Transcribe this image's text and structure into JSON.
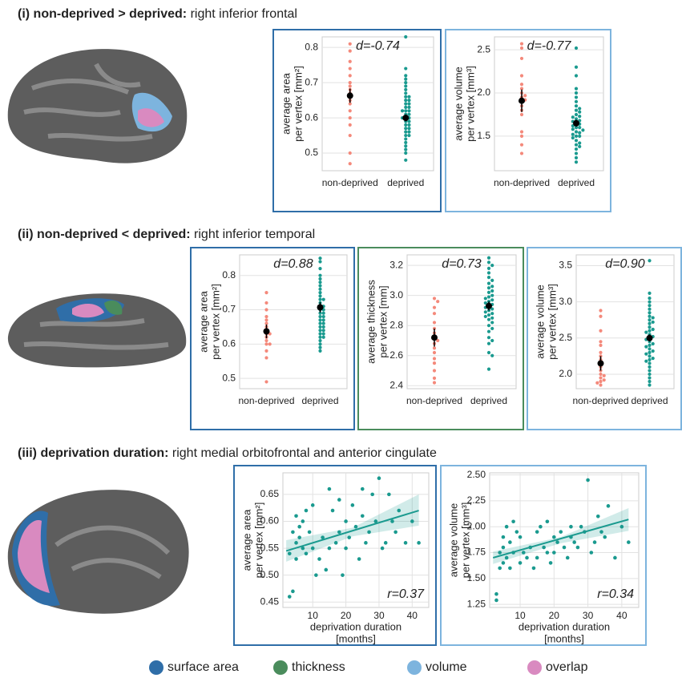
{
  "sections": [
    {
      "bold": "(i) non-deprived > deprived:",
      "text": "right inferior frontal"
    },
    {
      "bold": "(ii) non-deprived < deprived:",
      "text": "right inferior temporal"
    },
    {
      "bold": "(iii) deprivation duration:",
      "text": "right medial orbitofrontal and anterior cingulate"
    }
  ],
  "legend": [
    {
      "name": "surface area",
      "color": "#2f6ea8"
    },
    {
      "name": "thickness",
      "color": "#4a8c5c"
    },
    {
      "name": "volume",
      "color": "#7db4de"
    },
    {
      "name": "overlap",
      "color": "#d98ac0"
    }
  ],
  "chart_data": [
    {
      "type": "strip",
      "annotation": "d=-0.74",
      "frame_color": "#2f6ea8",
      "ylabel": [
        "average area",
        "per vertex [mm²]"
      ],
      "categories": [
        "non-deprived",
        "deprived"
      ],
      "ylim": [
        0.45,
        0.83
      ],
      "yticks": [
        0.5,
        0.6,
        0.7,
        0.8
      ],
      "groups": [
        {
          "color": "#f4897b",
          "mean": 0.663,
          "error": 0.02,
          "values": [
            0.81,
            0.79,
            0.76,
            0.74,
            0.72,
            0.7,
            0.69,
            0.68,
            0.67,
            0.66,
            0.65,
            0.64,
            0.62,
            0.6,
            0.58,
            0.55,
            0.5,
            0.47
          ]
        },
        {
          "color": "#1a9a8f",
          "mean": 0.6,
          "error": 0.01,
          "values": [
            0.83,
            0.74,
            0.72,
            0.71,
            0.7,
            0.69,
            0.68,
            0.67,
            0.66,
            0.66,
            0.65,
            0.65,
            0.64,
            0.64,
            0.63,
            0.63,
            0.62,
            0.62,
            0.62,
            0.61,
            0.61,
            0.6,
            0.6,
            0.6,
            0.59,
            0.59,
            0.58,
            0.58,
            0.57,
            0.57,
            0.56,
            0.56,
            0.55,
            0.55,
            0.54,
            0.53,
            0.52,
            0.51,
            0.5,
            0.48
          ]
        }
      ]
    },
    {
      "type": "strip",
      "annotation": "d=-0.77",
      "frame_color": "#7db4de",
      "ylabel": [
        "average volume",
        "per vertex [mm³]"
      ],
      "categories": [
        "non-deprived",
        "deprived"
      ],
      "ylim": [
        1.1,
        2.65
      ],
      "yticks": [
        {
          "value": 1.5,
          "label": "1.5"
        },
        {
          "value": 2,
          "label": "2.0"
        },
        {
          "value": 2.5,
          "label": "2.5"
        }
      ],
      "groups": [
        {
          "color": "#f4897b",
          "mean": 1.91,
          "error": 0.13,
          "values": [
            2.57,
            2.52,
            2.4,
            2.2,
            2.1,
            2.05,
            2,
            1.97,
            1.95,
            1.92,
            1.9,
            1.85,
            1.8,
            1.75,
            1.55,
            1.5,
            1.4,
            1.3
          ]
        },
        {
          "color": "#1a9a8f",
          "mean": 1.65,
          "error": 0.04,
          "values": [
            2.52,
            2.3,
            2.2,
            2.05,
            2,
            1.95,
            1.9,
            1.85,
            1.82,
            1.8,
            1.78,
            1.75,
            1.73,
            1.72,
            1.7,
            1.68,
            1.67,
            1.65,
            1.64,
            1.62,
            1.6,
            1.6,
            1.58,
            1.57,
            1.55,
            1.54,
            1.52,
            1.5,
            1.5,
            1.48,
            1.45,
            1.42,
            1.4,
            1.38,
            1.35,
            1.3,
            1.25,
            1.2
          ]
        }
      ]
    },
    {
      "type": "strip",
      "annotation": "d=0.88",
      "frame_color": "#2f6ea8",
      "ylabel": [
        "average area",
        "per vertex [mm²]"
      ],
      "categories": [
        "non-deprived",
        "deprived"
      ],
      "ylim": [
        0.47,
        0.86
      ],
      "yticks": [
        0.5,
        0.6,
        0.7,
        0.8
      ],
      "groups": [
        {
          "color": "#f4897b",
          "mean": 0.637,
          "error": 0.02,
          "values": [
            0.75,
            0.72,
            0.7,
            0.68,
            0.67,
            0.66,
            0.65,
            0.64,
            0.63,
            0.63,
            0.62,
            0.61,
            0.6,
            0.6,
            0.58,
            0.56,
            0.49
          ]
        },
        {
          "color": "#1a9a8f",
          "mean": 0.707,
          "error": 0.015,
          "values": [
            0.85,
            0.84,
            0.82,
            0.8,
            0.79,
            0.78,
            0.77,
            0.76,
            0.75,
            0.74,
            0.73,
            0.73,
            0.72,
            0.71,
            0.71,
            0.7,
            0.7,
            0.69,
            0.69,
            0.68,
            0.68,
            0.67,
            0.67,
            0.66,
            0.66,
            0.65,
            0.65,
            0.64,
            0.64,
            0.63,
            0.63,
            0.62,
            0.62,
            0.61,
            0.6,
            0.59,
            0.58
          ]
        }
      ]
    },
    {
      "type": "strip",
      "annotation": "d=0.73",
      "frame_color": "#4a8c5c",
      "ylabel": [
        "average thickness",
        "per vertex [mm]"
      ],
      "categories": [
        "non-deprived",
        "deprived"
      ],
      "ylim": [
        2.38,
        3.27
      ],
      "yticks": [
        2.4,
        2.6,
        2.8,
        {
          "value": 3,
          "label": "3.0"
        },
        3.2
      ],
      "groups": [
        {
          "color": "#f4897b",
          "mean": 2.72,
          "error": 0.06,
          "values": [
            2.98,
            2.96,
            2.92,
            2.88,
            2.82,
            2.78,
            2.75,
            2.72,
            2.7,
            2.68,
            2.65,
            2.62,
            2.58,
            2.55,
            2.5,
            2.45,
            2.42
          ]
        },
        {
          "color": "#1a9a8f",
          "mean": 2.93,
          "error": 0.03,
          "values": [
            3.25,
            3.22,
            3.2,
            3.18,
            3.15,
            3.12,
            3.1,
            3.08,
            3.06,
            3.05,
            3.03,
            3.02,
            3,
            2.99,
            2.98,
            2.97,
            2.96,
            2.95,
            2.94,
            2.93,
            2.92,
            2.91,
            2.9,
            2.89,
            2.88,
            2.87,
            2.86,
            2.85,
            2.84,
            2.82,
            2.8,
            2.78,
            2.76,
            2.72,
            2.7,
            2.68,
            2.62,
            2.6,
            2.51
          ]
        }
      ]
    },
    {
      "type": "strip",
      "annotation": "d=0.90",
      "frame_color": "#7db4de",
      "ylabel": [
        "average volume",
        "per vertex [mm³]"
      ],
      "categories": [
        "non-deprived",
        "deprived"
      ],
      "ylim": [
        1.8,
        3.65
      ],
      "yticks": [
        {
          "value": 2,
          "label": "2.0"
        },
        {
          "value": 2.5,
          "label": "2.5"
        },
        {
          "value": 3,
          "label": "3.0"
        },
        {
          "value": 3.5,
          "label": "3.5"
        }
      ],
      "groups": [
        {
          "color": "#f4897b",
          "mean": 2.15,
          "error": 0.1,
          "values": [
            2.88,
            2.8,
            2.6,
            2.45,
            2.4,
            2.3,
            2.25,
            2.2,
            2.15,
            2.1,
            2.05,
            2,
            1.98,
            1.95,
            1.92,
            1.9,
            1.88,
            1.85
          ]
        },
        {
          "color": "#1a9a8f",
          "mean": 2.5,
          "error": 0.05,
          "values": [
            3.57,
            3.12,
            3.05,
            3,
            2.95,
            2.9,
            2.85,
            2.8,
            2.78,
            2.75,
            2.72,
            2.7,
            2.65,
            2.62,
            2.6,
            2.58,
            2.55,
            2.52,
            2.5,
            2.48,
            2.45,
            2.42,
            2.4,
            2.38,
            2.35,
            2.32,
            2.3,
            2.28,
            2.25,
            2.22,
            2.2,
            2.18,
            2.15,
            2.1,
            2.05,
            2,
            1.95,
            1.9,
            1.85
          ]
        }
      ]
    },
    {
      "type": "scatter",
      "annotation": "r=0.37",
      "frame_color": "#2f6ea8",
      "color": "#1a9a8f",
      "ylabel": [
        "average area",
        "per vertex [mm²]"
      ],
      "xlabel": [
        "deprivation duration",
        "[months]"
      ],
      "xlim": [
        1,
        45
      ],
      "xticks": [
        10,
        20,
        30,
        40
      ],
      "ylim": [
        0.44,
        0.69
      ],
      "yticks": [
        0.45,
        {
          "value": 0.5,
          "label": "0.50"
        },
        0.55,
        {
          "value": 0.6,
          "label": "0.60"
        },
        0.65
      ],
      "x": [
        3,
        3,
        4,
        4,
        5,
        5,
        5,
        6,
        6,
        7,
        7,
        8,
        8,
        9,
        10,
        10,
        11,
        12,
        13,
        14,
        15,
        15,
        16,
        17,
        18,
        18,
        19,
        20,
        20,
        21,
        22,
        23,
        24,
        25,
        25,
        26,
        27,
        28,
        29,
        30,
        31,
        32,
        33,
        34,
        35,
        36,
        38,
        40,
        42
      ],
      "y": [
        0.46,
        0.54,
        0.47,
        0.58,
        0.53,
        0.56,
        0.61,
        0.57,
        0.59,
        0.55,
        0.6,
        0.54,
        0.62,
        0.58,
        0.55,
        0.63,
        0.5,
        0.53,
        0.57,
        0.51,
        0.55,
        0.66,
        0.62,
        0.56,
        0.58,
        0.64,
        0.5,
        0.6,
        0.55,
        0.57,
        0.63,
        0.59,
        0.53,
        0.61,
        0.66,
        0.56,
        0.58,
        0.65,
        0.6,
        0.68,
        0.55,
        0.56,
        0.65,
        0.6,
        0.58,
        0.62,
        0.56,
        0.6,
        0.56
      ],
      "fit": {
        "x": [
          2,
          42
        ],
        "y": [
          0.545,
          0.62
        ]
      },
      "ci": {
        "x": [
          2,
          22,
          42
        ],
        "lower": [
          0.525,
          0.572,
          0.592
        ],
        "upper": [
          0.565,
          0.588,
          0.65
        ]
      }
    },
    {
      "type": "scatter",
      "annotation": "r=0.34",
      "frame_color": "#7db4de",
      "color": "#1a9a8f",
      "ylabel": [
        "average volume",
        "per vertex [mm³]"
      ],
      "xlabel": [
        "deprivation duration",
        "[months]"
      ],
      "xlim": [
        1,
        45
      ],
      "xticks": [
        10,
        20,
        30,
        40
      ],
      "ylim": [
        1.22,
        2.52
      ],
      "yticks": [
        {
          "value": 1.25,
          "label": "1.25"
        },
        {
          "value": 1.5,
          "label": "1.50"
        },
        {
          "value": 1.75,
          "label": "1.75"
        },
        {
          "value": 2,
          "label": "2.00"
        },
        {
          "value": 2.25,
          "label": "2.25"
        },
        {
          "value": 2.5,
          "label": "2.50"
        }
      ],
      "x": [
        3,
        3,
        4,
        4,
        5,
        5,
        5,
        6,
        6,
        7,
        7,
        8,
        8,
        9,
        10,
        10,
        11,
        12,
        13,
        14,
        15,
        15,
        16,
        17,
        18,
        18,
        19,
        20,
        20,
        21,
        22,
        23,
        24,
        25,
        25,
        26,
        27,
        28,
        29,
        30,
        31,
        32,
        33,
        34,
        35,
        36,
        38,
        40,
        42
      ],
      "y": [
        1.29,
        1.35,
        1.6,
        1.75,
        1.65,
        1.8,
        1.9,
        1.7,
        2,
        1.6,
        1.85,
        1.75,
        2.05,
        1.95,
        1.65,
        1.9,
        1.75,
        1.7,
        1.8,
        1.6,
        1.7,
        1.95,
        2,
        1.8,
        1.75,
        2.05,
        1.65,
        1.9,
        1.75,
        1.85,
        1.95,
        1.8,
        1.7,
        1.9,
        2,
        1.85,
        1.8,
        2,
        1.95,
        2.45,
        1.75,
        1.85,
        2.1,
        1.95,
        1.9,
        2.2,
        1.7,
        2,
        1.85
      ],
      "fit": {
        "x": [
          2,
          42
        ],
        "y": [
          1.7,
          2.07
        ]
      },
      "ci": {
        "x": [
          2,
          22,
          42
        ],
        "lower": [
          1.64,
          1.84,
          1.96
        ],
        "upper": [
          1.76,
          1.9,
          2.18
        ]
      }
    }
  ]
}
